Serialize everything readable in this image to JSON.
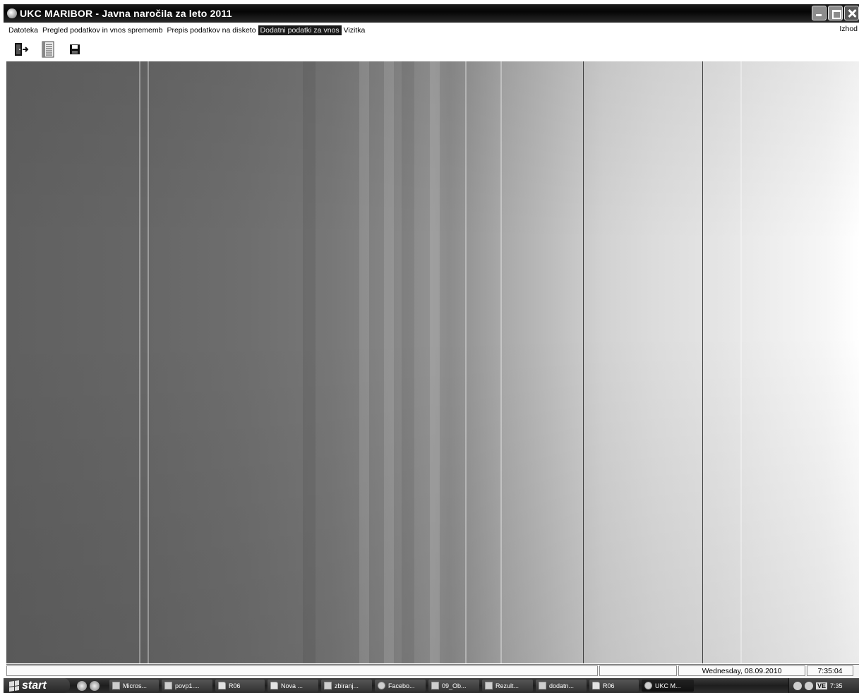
{
  "window": {
    "title": "UKC MARIBOR - Javna naročila za leto 2011",
    "controls": [
      "minimize",
      "maximize",
      "close"
    ]
  },
  "menu": {
    "items": [
      {
        "label": "Datoteka",
        "active": false
      },
      {
        "label": "Pregled podatkov in vnos sprememb",
        "active": false
      },
      {
        "label": "Prepis podatkov na disketo",
        "active": false
      },
      {
        "label": "Dodatni podatki za vnos",
        "active": true
      },
      {
        "label": "Vizitka",
        "active": false
      }
    ],
    "exit_label": "Izhod"
  },
  "toolbar": {
    "icons": [
      "exit-door-icon",
      "document-list-icon",
      "save-disk-icon"
    ]
  },
  "statusbar": {
    "panel_1": "",
    "panel_2": "",
    "date": "Wednesday, 08.09.2010",
    "time": "7:35:04"
  },
  "taskbar": {
    "start_label": "start",
    "tasks": [
      {
        "label": "Micros...",
        "icon": "window-icon"
      },
      {
        "label": "povp1....",
        "icon": "document-icon"
      },
      {
        "label": "R06",
        "icon": "folder-icon"
      },
      {
        "label": "Nova ...",
        "icon": "folder-icon"
      },
      {
        "label": "zbiranj...",
        "icon": "document-icon"
      },
      {
        "label": "Facebo...",
        "icon": "browser-icon"
      },
      {
        "label": "09_Ob...",
        "icon": "document-icon"
      },
      {
        "label": "Rezult...",
        "icon": "document-icon"
      },
      {
        "label": "dodatn...",
        "icon": "document-icon"
      },
      {
        "label": "R06",
        "icon": "folder-icon"
      },
      {
        "label": "UKC M...",
        "icon": "app-icon"
      }
    ],
    "tray": {
      "language": "VE",
      "clock": "7:35"
    }
  }
}
